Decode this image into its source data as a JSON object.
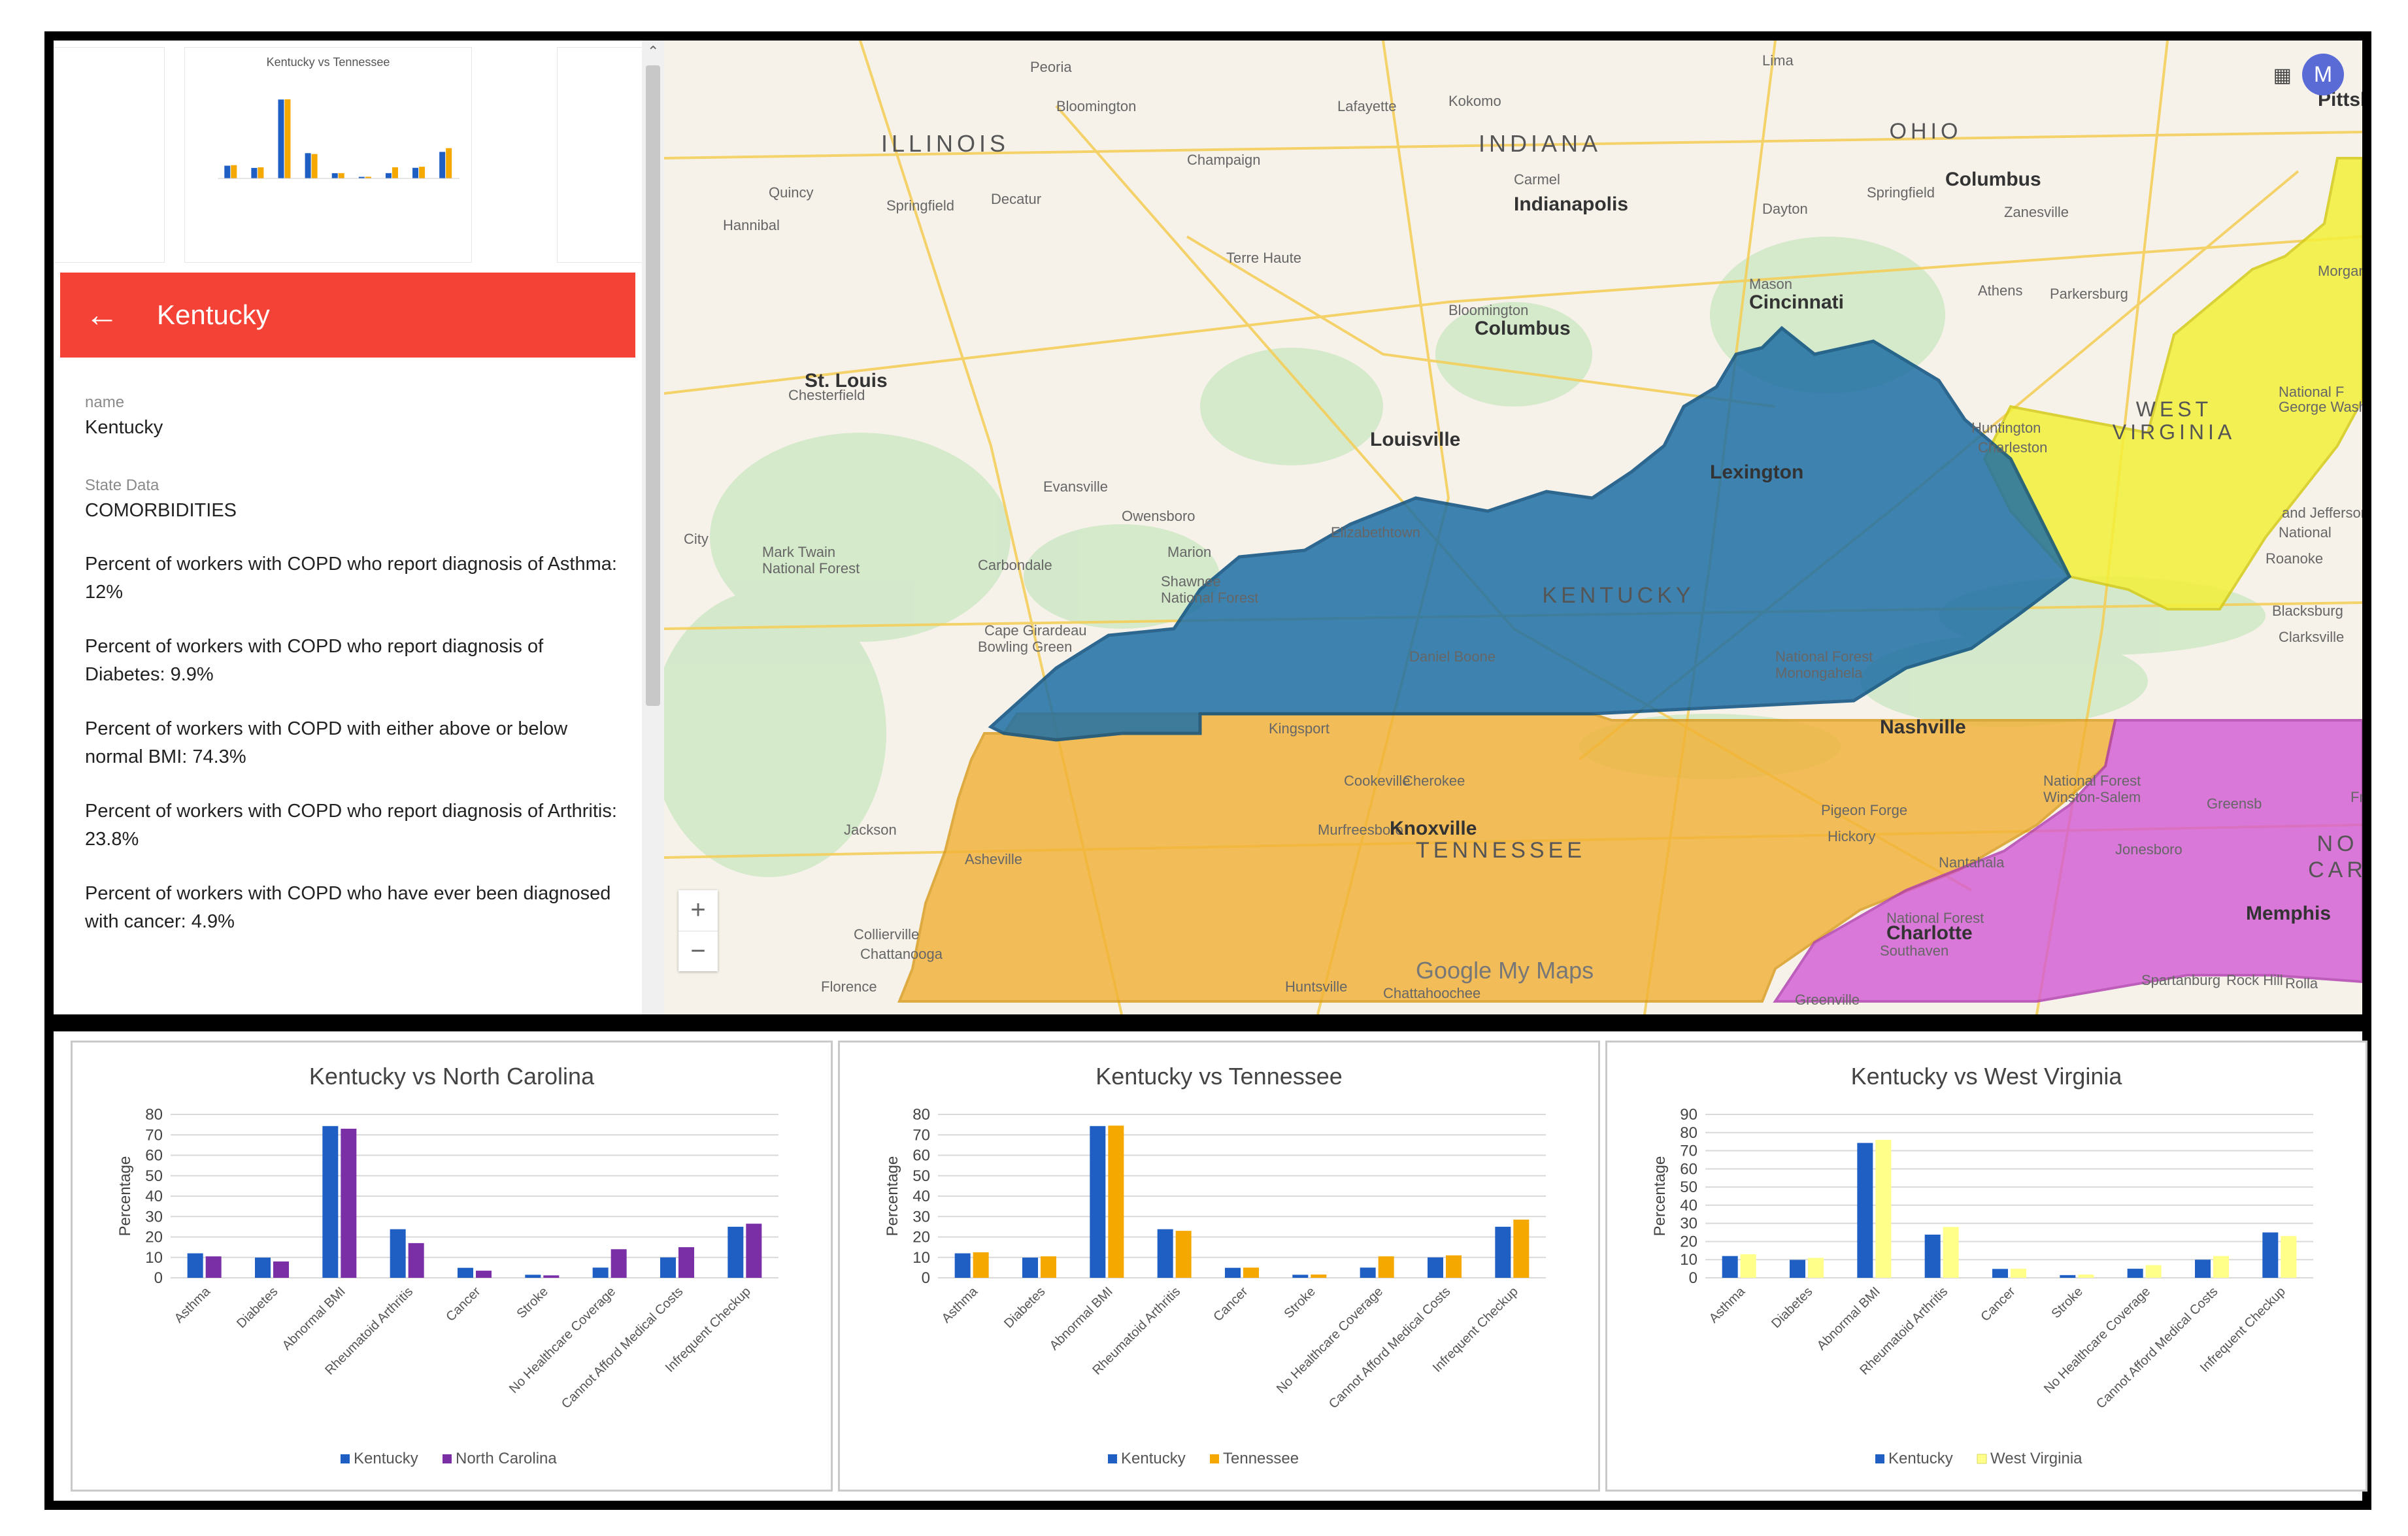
{
  "panel": {
    "thumb_title": "Kentucky vs Tennessee",
    "header_title": "Kentucky",
    "name_label": "name",
    "name_value": "Kentucky",
    "state_label": "State Data",
    "state_value": "COMORBIDITIES",
    "stats": [
      "Percent of workers with COPD who report diagnosis of Asthma: 12%",
      "Percent of workers with COPD who report diagnosis of Diabetes: 9.9%",
      "Percent of workers with COPD with either above or below normal BMI: 74.3%",
      "Percent of workers with COPD who report diagnosis of Arthritis: 23.8%",
      "Percent of workers with COPD who have ever been diagnosed with cancer: 4.9%"
    ]
  },
  "map": {
    "avatar_letter": "M",
    "branding": "Google My Maps",
    "zoom_in": "+",
    "zoom_out": "−",
    "states": [
      {
        "label": "KENTUCKY",
        "color": "#1f6fa5"
      },
      {
        "label": "TENNESSEE",
        "color": "#f2b134"
      },
      {
        "label": "WEST VIRGINIA",
        "color": "#f3f03a"
      },
      {
        "label": "NORTH CAROLINA",
        "color": "#d45ad6"
      }
    ],
    "region_labels": [
      "ILLINOIS",
      "INDIANA",
      "OHIO",
      "WEST",
      "VIRGINIA",
      "KENTUCKY",
      "TENNESSEE",
      "NO",
      "CAR"
    ],
    "cities": [
      "Peoria",
      "Bloomington",
      "Lafayette",
      "Kokomo",
      "Lima",
      "Champaign",
      "Quincy",
      "Springfield",
      "Decatur",
      "Indianapolis",
      "Carmel",
      "Dayton",
      "Springfield",
      "Columbus",
      "Zanesville",
      "Pittsburgh",
      "Hannibal",
      "Terre Haute",
      "Bloomington",
      "Columbus",
      "Mason",
      "Cincinnati",
      "Athens",
      "Parkersburg",
      "Morgantown",
      "St. Louis",
      "Chesterfield",
      "Louisville",
      "Lexington",
      "Huntington",
      "Charleston",
      "Evansville",
      "Owensboro",
      "Elizabethtown",
      "Marion",
      "Carbondale",
      "Mark Twain",
      "National Forest",
      "Shawnee",
      "National Forest",
      "Cape Girardeau",
      "Bowling Green",
      "Daniel Boone",
      "National Forest",
      "Monongahela",
      "National F",
      "George Washington",
      "and Jefferson",
      "National",
      "Roanoke",
      "Blacksburg",
      "Clarksville",
      "Kingsport",
      "Nashville",
      "Cookeville",
      "Cherokee",
      "National Forest",
      "Winston-Salem",
      "Greensb",
      "Franklin",
      "Murfreesboro",
      "Knoxville",
      "Pigeon Forge",
      "Hickory",
      "Jonesboro",
      "Jackson",
      "Asheville",
      "Nantahala",
      "National Forest",
      "Charlotte",
      "Memphis",
      "Collierville",
      "Chattanooga",
      "Southaven",
      "Florence",
      "Huntsville",
      "Chattahoochee",
      "Greenville",
      "Spartanburg",
      "Rock Hill",
      "Rolla",
      "City"
    ]
  },
  "chart_data": [
    {
      "type": "bar",
      "title": "Kentucky vs North Carolina",
      "ylabel": "Percentage",
      "ylim": [
        0,
        80
      ],
      "yticks": [
        "0",
        "10",
        "20",
        "30",
        "40",
        "50",
        "60",
        "70",
        "80"
      ],
      "categories": [
        "Asthma",
        "Diabetes",
        "Abnormal BMI",
        "Rheumatoid Arthritis",
        "Cancer",
        "Stroke",
        "No Healthcare Coverage",
        "Cannot Afford Medical Costs",
        "Infrequent Checkup"
      ],
      "legend_position": "bottom",
      "grid": true,
      "series": [
        {
          "name": "Kentucky",
          "color": "#1f5fc4",
          "values": [
            12,
            9.9,
            74.3,
            23.8,
            4.9,
            1.5,
            5,
            10,
            25
          ]
        },
        {
          "name": "North Carolina",
          "color": "#7b2fa6",
          "values": [
            10.5,
            8,
            73,
            17,
            3.5,
            1.2,
            14,
            15,
            26.5
          ]
        }
      ]
    },
    {
      "type": "bar",
      "title": "Kentucky vs Tennessee",
      "ylabel": "Percentage",
      "ylim": [
        0,
        80
      ],
      "yticks": [
        "0",
        "10",
        "20",
        "30",
        "40",
        "50",
        "60",
        "70",
        "80"
      ],
      "categories": [
        "Asthma",
        "Diabetes",
        "Abnormal BMI",
        "Rheumatoid Arthritis",
        "Cancer",
        "Stroke",
        "No Healthcare Coverage",
        "Cannot Afford Medical Costs",
        "Infrequent Checkup"
      ],
      "legend_position": "bottom",
      "grid": true,
      "series": [
        {
          "name": "Kentucky",
          "color": "#1f5fc4",
          "values": [
            12,
            9.9,
            74.3,
            23.8,
            4.9,
            1.5,
            5,
            10,
            25
          ]
        },
        {
          "name": "Tennessee",
          "color": "#f5a800",
          "values": [
            12.5,
            10.5,
            74.5,
            23,
            5,
            1.6,
            10.5,
            11,
            28.5
          ]
        }
      ]
    },
    {
      "type": "bar",
      "title": "Kentucky vs West Virginia",
      "ylabel": "Percentage",
      "ylim": [
        0,
        90
      ],
      "yticks": [
        "0",
        "10",
        "20",
        "30",
        "40",
        "50",
        "60",
        "70",
        "80",
        "90"
      ],
      "categories": [
        "Asthma",
        "Diabetes",
        "Abnormal BMI",
        "Rheumatoid Arthritis",
        "Cancer",
        "Stroke",
        "No Healthcare Coverage",
        "Cannot Afford Medical Costs",
        "Infrequent Checkup"
      ],
      "legend_position": "bottom",
      "grid": true,
      "series": [
        {
          "name": "Kentucky",
          "color": "#1f5fc4",
          "values": [
            12,
            9.9,
            74.3,
            23.8,
            4.9,
            1.5,
            5,
            10,
            25
          ]
        },
        {
          "name": "West Virginia",
          "color": "#ffff8a",
          "values": [
            13,
            11,
            76,
            28,
            5,
            1.8,
            7,
            12,
            23
          ]
        }
      ]
    }
  ]
}
